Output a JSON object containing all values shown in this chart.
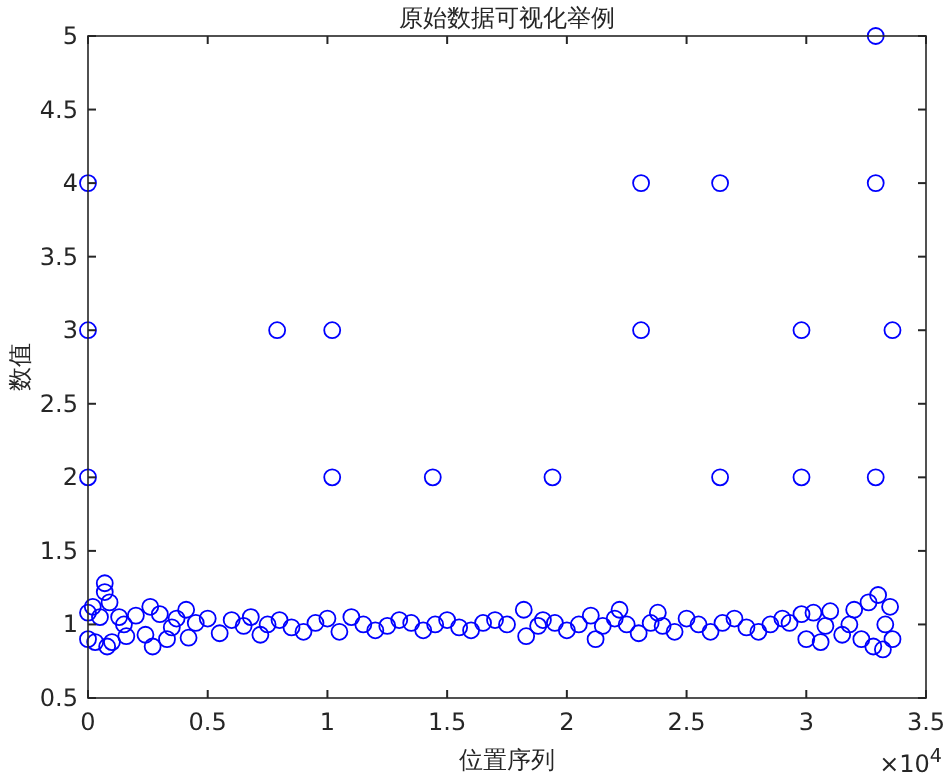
{
  "chart_data": {
    "type": "scatter",
    "title": "原始数据可视化举例",
    "xlabel": "位置序列",
    "ylabel": "数值",
    "annotations": [
      "×10$^{4}$"
    ],
    "xlim": [
      0,
      3.5
    ],
    "ylim": [
      0.5,
      5
    ],
    "xticks": [
      0,
      0.5,
      1,
      1.5,
      2,
      2.5,
      3,
      3.5
    ],
    "yticks": [
      0.5,
      1,
      1.5,
      2,
      2.5,
      3,
      3.5,
      4,
      4.5,
      5
    ],
    "marker": "circle",
    "grid": false,
    "series": [
      {
        "color": "#0000ff",
        "x": [
          0,
          0,
          0,
          0.79,
          1.02,
          1.02,
          1.44,
          1.94,
          2.31,
          2.31,
          2.64,
          2.64,
          2.98,
          2.98,
          3.29,
          3.29,
          3.29,
          3.36,
          0,
          0,
          0.02,
          0.03,
          0.05,
          0.07,
          0.07,
          0.08,
          0.09,
          0.1,
          0.13,
          0.16,
          0.2,
          0.24,
          0.26,
          0.27,
          0.3,
          0.33,
          0.37,
          0.41,
          0.42,
          0.5,
          0.55,
          0.6,
          0.68,
          0.72,
          0.8,
          0.9,
          1.0,
          1.05,
          1.1,
          1.2,
          1.3,
          1.4,
          1.5,
          1.6,
          1.7,
          1.82,
          1.83,
          1.9,
          2.0,
          2.1,
          2.12,
          2.2,
          2.22,
          2.3,
          2.38,
          2.45,
          2.5,
          2.6,
          2.7,
          2.8,
          2.9,
          2.98,
          3.0,
          3.03,
          3.06,
          3.1,
          3.15,
          3.2,
          3.23,
          3.26,
          3.28,
          3.3,
          3.32,
          3.35,
          3.36,
          0.15,
          0.35,
          0.45,
          0.65,
          0.75,
          0.85,
          0.95,
          1.15,
          1.25,
          1.35,
          1.45,
          1.55,
          1.65,
          1.75,
          1.88,
          1.95,
          2.05,
          2.15,
          2.25,
          2.35,
          2.4,
          2.55,
          2.65,
          2.75,
          2.85,
          2.93,
          3.08,
          3.18,
          3.33
        ],
        "values": [
          4,
          3,
          2,
          3,
          3,
          2,
          2,
          2,
          4,
          3,
          4,
          2,
          3,
          2,
          5,
          4,
          2,
          3,
          1.08,
          0.9,
          1.12,
          0.88,
          1.05,
          1.28,
          1.22,
          0.85,
          1.15,
          0.88,
          1.05,
          0.92,
          1.06,
          0.93,
          1.12,
          0.85,
          1.07,
          0.9,
          1.04,
          1.1,
          0.91,
          1.04,
          0.94,
          1.03,
          1.05,
          0.93,
          1.03,
          0.95,
          1.04,
          0.95,
          1.05,
          0.96,
          1.03,
          0.96,
          1.03,
          0.96,
          1.03,
          1.1,
          0.92,
          1.03,
          0.96,
          1.06,
          0.9,
          1.04,
          1.1,
          0.94,
          1.08,
          0.95,
          1.04,
          0.95,
          1.04,
          0.95,
          1.04,
          1.07,
          0.9,
          1.08,
          0.88,
          1.09,
          0.93,
          1.1,
          0.9,
          1.15,
          0.85,
          1.2,
          0.83,
          1.12,
          0.9,
          1,
          0.98,
          1.01,
          0.99,
          1,
          0.98,
          1.01,
          1,
          0.99,
          1.01,
          1,
          0.98,
          1.01,
          1,
          0.99,
          1.01,
          1,
          0.99,
          1,
          1.01,
          0.99,
          1,
          1.01,
          0.98,
          1,
          1.01,
          0.99,
          1,
          1
        ]
      }
    ]
  }
}
